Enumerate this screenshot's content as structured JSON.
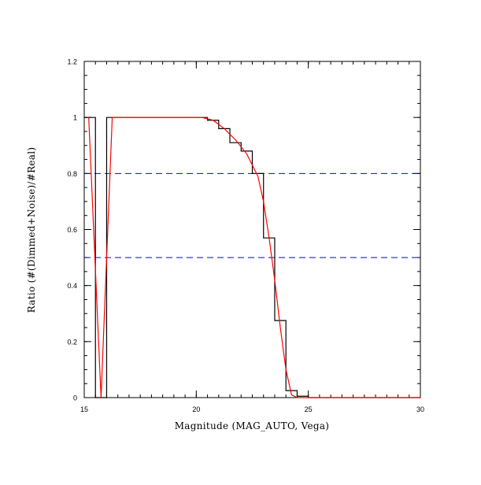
{
  "chart_data": {
    "type": "line",
    "title": "",
    "xlabel": "Magnitude (MAG_AUTO, Vega)",
    "ylabel": "Ratio (#(Dimmed+Noise)/#Real)",
    "xlim": [
      15,
      30
    ],
    "ylim": [
      0,
      1.2
    ],
    "x_ticks": [
      15,
      20,
      25,
      30
    ],
    "y_ticks": [
      0,
      0.2,
      0.4,
      0.6,
      0.8,
      1,
      1.2
    ],
    "x_tick_labels": [
      "15",
      "20",
      "25",
      "30"
    ],
    "y_tick_labels": [
      "0",
      "0.2",
      "0.4",
      "0.6",
      "0.8",
      "1",
      "1.2"
    ],
    "grid": false,
    "reference_lines": [
      {
        "axis": "y",
        "value": 0.8,
        "style": "dashed",
        "color": "#0000ff"
      },
      {
        "axis": "y",
        "value": 0.5,
        "style": "dashed",
        "color": "#0000ff"
      }
    ],
    "series": [
      {
        "style": "step",
        "color": "#000000",
        "bin_edges": [
          15,
          15.5,
          16,
          16.5,
          17,
          17.5,
          18,
          18.5,
          19,
          19.5,
          20,
          20.5,
          21,
          21.5,
          22,
          22.5,
          23,
          23.5,
          24,
          24.5,
          25,
          25.5,
          26,
          26.5,
          27,
          27.5,
          28,
          28.5,
          29,
          29.5,
          30
        ],
        "values": [
          1.0,
          0.0,
          1.0,
          1.0,
          1.0,
          1.0,
          1.0,
          1.0,
          1.0,
          1.0,
          1.0,
          0.99,
          0.96,
          0.91,
          0.88,
          0.8,
          0.57,
          0.275,
          0.025,
          0.005,
          0,
          0,
          0,
          0,
          0,
          0,
          0,
          0,
          0,
          0
        ]
      },
      {
        "style": "line",
        "color": "#ff0000",
        "x": [
          15.2,
          15.75,
          16.25,
          16.75,
          17.25,
          17.75,
          18.25,
          18.75,
          19.25,
          19.75,
          20.25,
          20.75,
          21.25,
          21.75,
          22.25,
          22.75,
          23.0,
          23.25,
          23.5,
          23.75,
          24.0,
          24.25,
          24.5,
          25.0,
          26.0,
          27.0,
          28.0,
          29.0,
          30.0
        ],
        "y": [
          1.0,
          0.0,
          1.0,
          1.0,
          1.0,
          1.0,
          1.0,
          1.0,
          1.0,
          1.0,
          1.0,
          0.99,
          0.96,
          0.92,
          0.87,
          0.79,
          0.7,
          0.57,
          0.42,
          0.25,
          0.1,
          0.01,
          0.0,
          0.0,
          0.0,
          0.0,
          0.0,
          0.0,
          0.0
        ]
      }
    ]
  }
}
